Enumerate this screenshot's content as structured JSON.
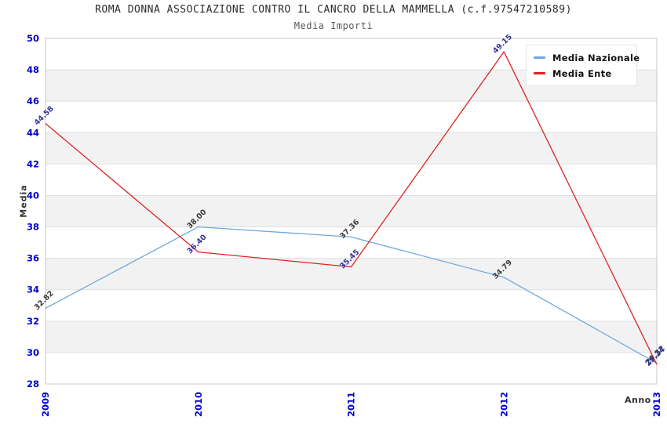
{
  "header": {
    "title": "ROMA DONNA ASSOCIAZIONE CONTRO IL CANCRO DELLA MAMMELLA (c.f.97547210589)",
    "subtitle": "Media Importi"
  },
  "chart_data": {
    "type": "line",
    "title": "ROMA DONNA ASSOCIAZIONE CONTRO IL CANCRO DELLA MAMMELLA (c.f.97547210589)",
    "subtitle": "Media Importi",
    "categories": [
      "2009",
      "2010",
      "2011",
      "2012",
      "2013"
    ],
    "series": [
      {
        "name": "Media Nazionale",
        "color": "#6fa8dc",
        "label_color": "#3c3c3c",
        "values": [
          32.82,
          38.0,
          37.36,
          34.79,
          29.32
        ]
      },
      {
        "name": "Media Ente",
        "color": "#dd2222",
        "label_color": "#333399",
        "values": [
          44.58,
          36.4,
          35.45,
          49.15,
          29.24
        ]
      }
    ],
    "xlabel": "Anno",
    "ylabel": "Media",
    "ylim": [
      28,
      50
    ],
    "ytick_step": 2,
    "yticks": [
      28,
      30,
      32,
      34,
      36,
      38,
      40,
      42,
      44,
      46,
      48,
      50
    ],
    "grid": "horizontal-bands",
    "legend_position": "top-right",
    "colors": {
      "band_fill": "#f2f2f2",
      "gridline": "#e0e0e0",
      "plot_border": "#c8c8c8",
      "axis_tick_label": "#0000cc",
      "axis_title": "#333333"
    }
  }
}
